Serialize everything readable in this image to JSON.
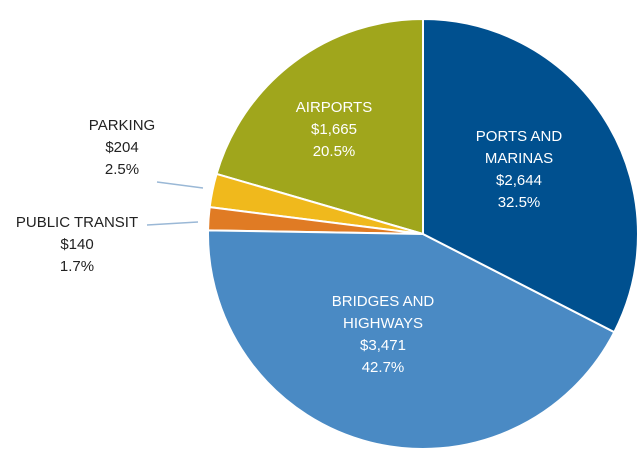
{
  "chart_data": {
    "type": "pie",
    "categories": [
      "PORTS AND MARINAS",
      "BRIDGES AND HIGHWAYS",
      "PUBLIC TRANSIT",
      "PARKING",
      "AIRPORTS"
    ],
    "values": [
      2644,
      3471,
      140,
      204,
      1665
    ],
    "value_labels": [
      "$2,644",
      "$3,471",
      "$140",
      "$204",
      "$1,665"
    ],
    "percent_labels": [
      "32.5%",
      "42.7%",
      "1.7%",
      "2.5%",
      "20.5%"
    ],
    "colors": [
      "#00508f",
      "#4a8ac4",
      "#e07b24",
      "#f0b91c",
      "#a0a61c"
    ]
  }
}
